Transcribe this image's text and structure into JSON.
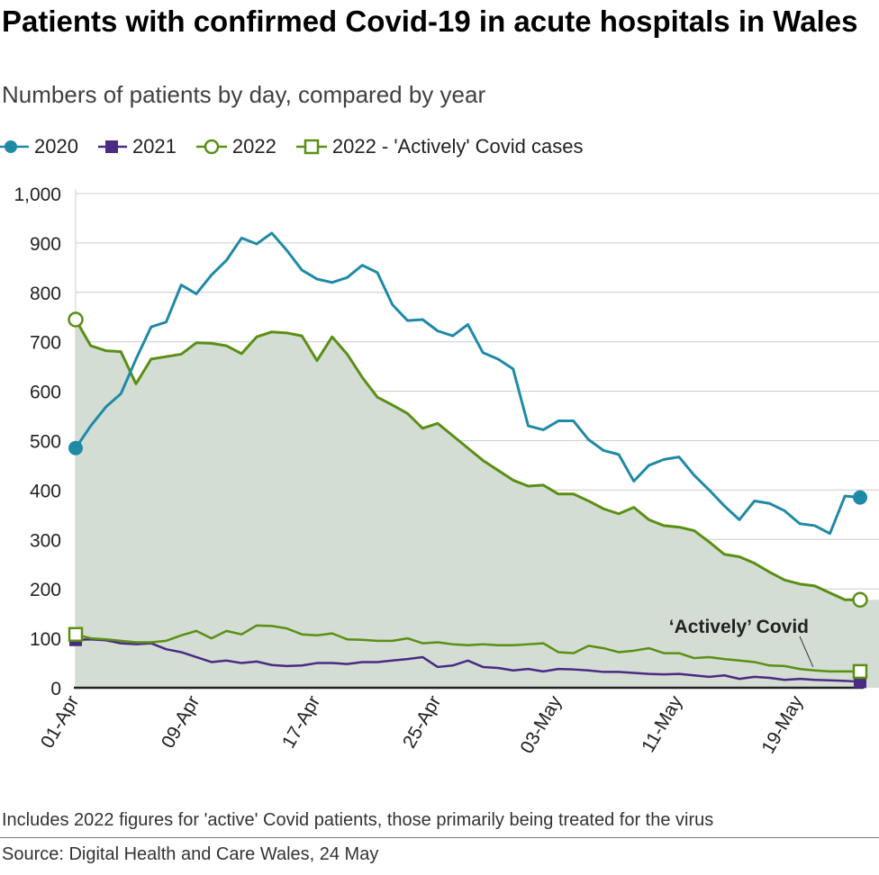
{
  "title": "Patients with confirmed Covid-19 in acute hospitals in Wales",
  "subtitle": "Numbers of patients by day, compared by year",
  "legend": [
    {
      "label": "2020",
      "marker": "filled-circle",
      "color": "#1f8aa6"
    },
    {
      "label": "2021",
      "marker": "filled-square",
      "color": "#4b2a83"
    },
    {
      "label": "2022",
      "marker": "open-circle",
      "color": "#5a8f14"
    },
    {
      "label": "2022 - 'Actively' Covid cases",
      "marker": "open-square",
      "color": "#5a8f14"
    }
  ],
  "footnote": "Includes 2022 figures for 'active' Covid patients, those primarily being treated for the virus",
  "source": "Source: Digital Health and Care Wales, 24 May",
  "chart_data": {
    "type": "line",
    "x_start": "01-Apr",
    "x_count": 53,
    "xticks": [
      {
        "index": 0,
        "label": "01-Apr"
      },
      {
        "index": 8,
        "label": "09-Apr"
      },
      {
        "index": 16,
        "label": "17-Apr"
      },
      {
        "index": 24,
        "label": "25-Apr"
      },
      {
        "index": 32,
        "label": "03-May"
      },
      {
        "index": 40,
        "label": "11-May"
      },
      {
        "index": 48,
        "label": "19-May"
      }
    ],
    "ylim": [
      0,
      1000
    ],
    "yticks": [
      0,
      100,
      200,
      300,
      400,
      500,
      600,
      700,
      800,
      900,
      1000
    ],
    "ytick_labels": [
      "0",
      "100",
      "200",
      "300",
      "400",
      "500",
      "600",
      "700",
      "800",
      "900",
      "1,000"
    ],
    "grid": true,
    "area_fill_color": "#d3ddd4",
    "annotation": "‘Actively’ Covid",
    "series": [
      {
        "name": "2020",
        "color": "#1f8aa6",
        "marker": "filled-circle",
        "values": [
          485,
          530,
          568,
          595,
          665,
          730,
          740,
          815,
          797,
          835,
          865,
          910,
          898,
          920,
          885,
          845,
          827,
          820,
          830,
          855,
          840,
          775,
          743,
          745,
          722,
          712,
          735,
          678,
          665,
          645,
          530,
          522,
          540,
          540,
          502,
          480,
          472,
          418,
          450,
          462,
          467,
          430,
          400,
          368,
          340,
          378,
          373,
          358,
          332,
          328,
          312,
          388,
          385
        ]
      },
      {
        "name": "2021",
        "color": "#4b2a83",
        "marker": "filled-square",
        "values": [
          97,
          98,
          96,
          90,
          88,
          90,
          78,
          72,
          62,
          52,
          55,
          50,
          53,
          46,
          44,
          45,
          50,
          50,
          48,
          52,
          52,
          55,
          58,
          62,
          42,
          45,
          55,
          42,
          40,
          35,
          38,
          33,
          38,
          37,
          35,
          32,
          32,
          30,
          28,
          27,
          28,
          25,
          22,
          25,
          18,
          22,
          20,
          16,
          18,
          16,
          15,
          14,
          12
        ]
      },
      {
        "name": "2022",
        "color": "#5a8f14",
        "marker": "open-circle",
        "values": [
          745,
          692,
          682,
          680,
          615,
          665,
          670,
          675,
          698,
          697,
          692,
          676,
          710,
          720,
          718,
          712,
          662,
          710,
          675,
          628,
          588,
          572,
          555,
          525,
          535,
          510,
          485,
          460,
          440,
          420,
          408,
          410,
          392,
          392,
          378,
          362,
          352,
          365,
          340,
          328,
          325,
          318,
          295,
          270,
          265,
          252,
          234,
          218,
          210,
          206,
          192,
          178,
          178
        ]
      },
      {
        "name": "2022 - 'Actively' Covid cases",
        "color": "#5a8f14",
        "marker": "open-square",
        "values": [
          108,
          100,
          98,
          95,
          92,
          92,
          95,
          106,
          115,
          100,
          115,
          108,
          126,
          125,
          120,
          108,
          106,
          110,
          98,
          97,
          95,
          95,
          100,
          90,
          92,
          88,
          86,
          88,
          86,
          86,
          88,
          90,
          72,
          70,
          85,
          80,
          72,
          75,
          80,
          70,
          70,
          60,
          62,
          58,
          55,
          52,
          45,
          44,
          38,
          35,
          33,
          33,
          33
        ]
      }
    ]
  }
}
